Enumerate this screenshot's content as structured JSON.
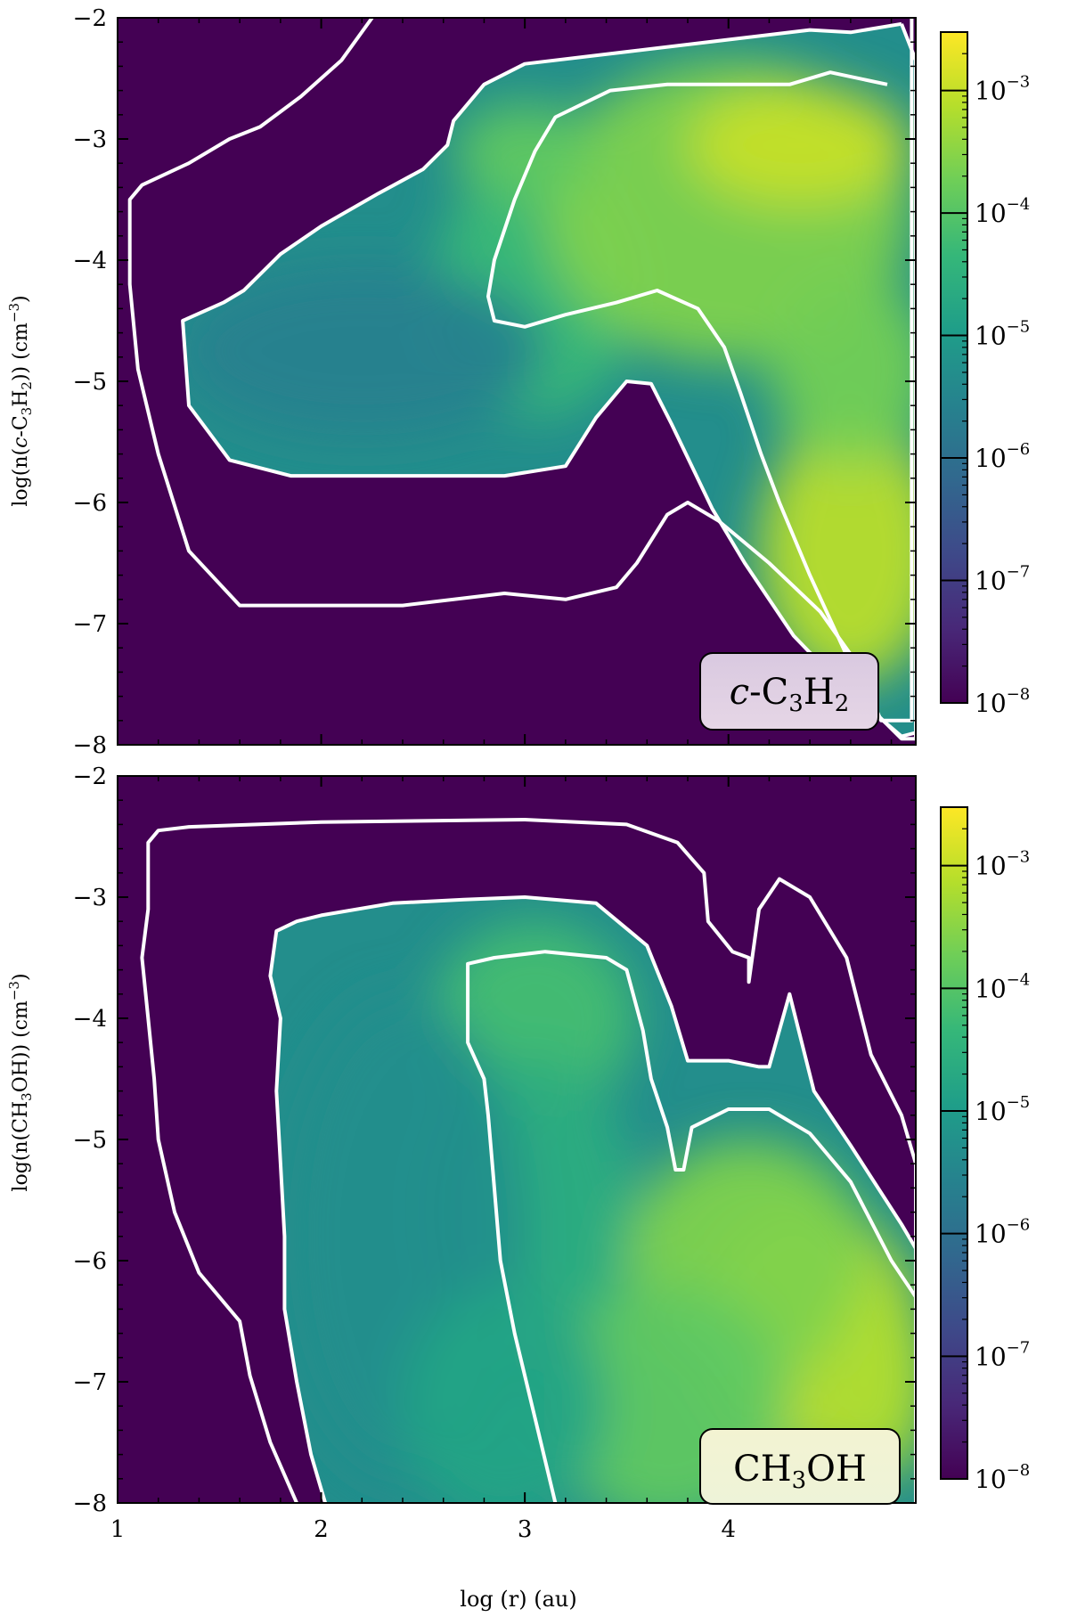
{
  "colors": {
    "background": "#440154",
    "contour": "#ffffff",
    "label_box_top": "#d9c9e0",
    "label_box_bottom": "#f3f3d2",
    "viridis": [
      "#440154",
      "#482878",
      "#3e4989",
      "#31688e",
      "#26828e",
      "#1f9e89",
      "#35b779",
      "#6ece58",
      "#b5de2b",
      "#fde725"
    ]
  },
  "chart_data": [
    {
      "type": "heatmap",
      "title": "",
      "species_label": "c-C3H2",
      "species_label_parts": {
        "prefix": "c",
        "text": "-C",
        "sub1": "3",
        "text2": "H",
        "sub2": "2"
      },
      "xlabel": "log (r) (au)",
      "ylabel_parts": {
        "a": "log(n(",
        "b": "c",
        "c": "-C",
        "sub1": "3",
        "d": "H",
        "sub2": "2",
        "e": ")) (cm",
        "sup": "−3",
        "f": ")"
      },
      "xlim": [
        1,
        4.92
      ],
      "ylim": [
        -8,
        -2
      ],
      "xticks": [
        "1",
        "2",
        "3",
        "4"
      ],
      "xtick_values": [
        1,
        2,
        3,
        4
      ],
      "yticks": [
        "−2",
        "−3",
        "−4",
        "−5",
        "−6",
        "−7",
        "−8"
      ],
      "ytick_values": [
        -2,
        -3,
        -4,
        -5,
        -6,
        -7,
        -8
      ],
      "colorbar": {
        "scale": "log",
        "range": [
          1e-08,
          0.003
        ],
        "tick_exponents": [
          "−3",
          "−4",
          "−5",
          "−6",
          "−7",
          "−8"
        ],
        "tick_values": [
          -3,
          -4,
          -5,
          -6,
          -7,
          -8
        ]
      },
      "grid": false,
      "contours": [
        {
          "level": "outer",
          "points": [
            [
              4.9,
              -2
            ],
            [
              4.9,
              -7.8
            ],
            [
              4.75,
              -7.8
            ],
            [
              4.62,
              -7.3
            ],
            [
              4.45,
              -6.9
            ],
            [
              4.2,
              -6.5
            ],
            [
              3.95,
              -6.15
            ],
            [
              3.8,
              -6
            ],
            [
              3.7,
              -6.1
            ],
            [
              3.55,
              -6.5
            ],
            [
              3.45,
              -6.7
            ],
            [
              3.2,
              -6.8
            ],
            [
              2.9,
              -6.75
            ],
            [
              2.4,
              -6.85
            ],
            [
              1.9,
              -6.85
            ],
            [
              1.6,
              -6.85
            ],
            [
              1.35,
              -6.4
            ],
            [
              1.2,
              -5.6
            ],
            [
              1.1,
              -4.9
            ],
            [
              1.06,
              -4.2
            ],
            [
              1.06,
              -3.5
            ],
            [
              1.12,
              -3.38
            ],
            [
              1.35,
              -3.2
            ],
            [
              1.55,
              -3.0
            ],
            [
              1.7,
              -2.9
            ],
            [
              1.9,
              -2.65
            ],
            [
              2.1,
              -2.35
            ],
            [
              2.25,
              -2.0
            ]
          ]
        },
        {
          "level": "middle",
          "points": [
            [
              4.85,
              -2.05
            ],
            [
              4.92,
              -2.35
            ],
            [
              4.92,
              -7.9
            ],
            [
              4.85,
              -7.93
            ],
            [
              4.55,
              -7.5
            ],
            [
              4.32,
              -7.1
            ],
            [
              4.08,
              -6.5
            ],
            [
              3.92,
              -6.05
            ],
            [
              3.72,
              -5.35
            ],
            [
              3.62,
              -5.02
            ],
            [
              3.5,
              -5
            ],
            [
              3.35,
              -5.3
            ],
            [
              3.2,
              -5.7
            ],
            [
              2.9,
              -5.78
            ],
            [
              2.5,
              -5.78
            ],
            [
              2.2,
              -5.78
            ],
            [
              1.85,
              -5.78
            ],
            [
              1.55,
              -5.65
            ],
            [
              1.35,
              -5.2
            ],
            [
              1.32,
              -4.5
            ],
            [
              1.52,
              -4.35
            ],
            [
              1.62,
              -4.25
            ],
            [
              1.8,
              -3.95
            ],
            [
              2.0,
              -3.72
            ],
            [
              2.28,
              -3.45
            ],
            [
              2.5,
              -3.25
            ],
            [
              2.62,
              -3.05
            ],
            [
              2.65,
              -2.85
            ],
            [
              2.8,
              -2.55
            ],
            [
              3.0,
              -2.38
            ],
            [
              3.5,
              -2.28
            ],
            [
              4.0,
              -2.18
            ],
            [
              4.4,
              -2.1
            ],
            [
              4.6,
              -2.12
            ],
            [
              4.85,
              -2.05
            ]
          ]
        },
        {
          "level": "inner",
          "points": [
            [
              4.78,
              -2.55
            ],
            [
              4.5,
              -2.45
            ],
            [
              4.3,
              -2.55
            ],
            [
              4.1,
              -2.55
            ],
            [
              3.9,
              -2.55
            ],
            [
              3.7,
              -2.55
            ],
            [
              3.42,
              -2.6
            ],
            [
              3.15,
              -2.82
            ],
            [
              3.05,
              -3.1
            ],
            [
              2.95,
              -3.5
            ],
            [
              2.85,
              -4.0
            ],
            [
              2.82,
              -4.3
            ],
            [
              2.85,
              -4.5
            ],
            [
              3.0,
              -4.55
            ],
            [
              3.2,
              -4.45
            ],
            [
              3.45,
              -4.35
            ],
            [
              3.65,
              -4.25
            ],
            [
              3.85,
              -4.4
            ],
            [
              3.98,
              -4.72
            ],
            [
              4.06,
              -5.1
            ],
            [
              4.16,
              -5.6
            ],
            [
              4.25,
              -6.0
            ],
            [
              4.4,
              -6.6
            ],
            [
              4.55,
              -7.15
            ],
            [
              4.7,
              -7.7
            ],
            [
              4.85,
              -7.95
            ],
            [
              4.92,
              -7.95
            ],
            [
              4.92,
              -2.6
            ]
          ]
        }
      ],
      "blobs": [
        {
          "x": 3.05,
          "y": -4.25,
          "rx": 0.5,
          "ry": 1.05,
          "value": -4.3
        },
        {
          "x": 4.0,
          "y": -3.6,
          "rx": 0.9,
          "ry": 1.25,
          "value": -3.6
        },
        {
          "x": 4.35,
          "y": -3.05,
          "rx": 0.55,
          "ry": 0.5,
          "value": -3.0
        },
        {
          "x": 4.6,
          "y": -6.4,
          "rx": 0.45,
          "ry": 1.1,
          "value": -3.1
        },
        {
          "x": 4.6,
          "y": -4.9,
          "rx": 0.4,
          "ry": 0.8,
          "value": -3.7
        },
        {
          "x": 2.2,
          "y": -4.75,
          "rx": 0.9,
          "ry": 0.7,
          "value": -5.6
        },
        {
          "x": 3.0,
          "y": -3.1,
          "rx": 0.35,
          "ry": 0.4,
          "value": -3.9
        }
      ]
    },
    {
      "type": "heatmap",
      "title": "",
      "species_label": "CH3OH",
      "species_label_parts": {
        "text": "CH",
        "sub1": "3",
        "text2": "OH"
      },
      "xlabel": "log (r) (au)",
      "ylabel_parts": {
        "a": "log(n(CH",
        "sub1": "3",
        "d": "OH)) (cm",
        "sup": "−3",
        "f": ")"
      },
      "xlim": [
        1,
        4.92
      ],
      "ylim": [
        -8,
        -2
      ],
      "xticks": [
        "1",
        "2",
        "3",
        "4"
      ],
      "xtick_values": [
        1,
        2,
        3,
        4
      ],
      "yticks": [
        "−2",
        "−3",
        "−4",
        "−5",
        "−6",
        "−7",
        "−8"
      ],
      "ytick_values": [
        -2,
        -3,
        -4,
        -5,
        -6,
        -7,
        -8
      ],
      "colorbar": {
        "scale": "log",
        "range": [
          1e-08,
          0.003
        ],
        "tick_exponents": [
          "−3",
          "−4",
          "−5",
          "−6",
          "−7",
          "−8"
        ],
        "tick_values": [
          -3,
          -4,
          -5,
          -6,
          -7,
          -8
        ]
      },
      "grid": false,
      "contours": [
        {
          "level": "outer",
          "points": [
            [
              1.88,
              -8
            ],
            [
              1.75,
              -7.5
            ],
            [
              1.65,
              -6.95
            ],
            [
              1.6,
              -6.5
            ],
            [
              1.4,
              -6.1
            ],
            [
              1.28,
              -5.6
            ],
            [
              1.2,
              -5.0
            ],
            [
              1.18,
              -4.5
            ],
            [
              1.15,
              -4.0
            ],
            [
              1.12,
              -3.5
            ],
            [
              1.15,
              -3.1
            ],
            [
              1.15,
              -2.55
            ],
            [
              1.2,
              -2.45
            ],
            [
              1.35,
              -2.42
            ],
            [
              2.0,
              -2.38
            ],
            [
              3.0,
              -2.36
            ],
            [
              3.5,
              -2.4
            ],
            [
              3.75,
              -2.55
            ],
            [
              3.88,
              -2.8
            ],
            [
              3.9,
              -3.2
            ],
            [
              4.02,
              -3.45
            ],
            [
              4.1,
              -3.5
            ],
            [
              4.1,
              -3.7
            ],
            [
              4.15,
              -3.1
            ],
            [
              4.25,
              -2.85
            ],
            [
              4.4,
              -3.0
            ],
            [
              4.58,
              -3.5
            ],
            [
              4.7,
              -4.3
            ],
            [
              4.85,
              -4.8
            ],
            [
              4.92,
              -5.2
            ],
            [
              4.92,
              -8
            ]
          ]
        },
        {
          "level": "middle",
          "points": [
            [
              2.02,
              -8
            ],
            [
              1.95,
              -7.6
            ],
            [
              1.88,
              -7.0
            ],
            [
              1.82,
              -6.4
            ],
            [
              1.82,
              -5.8
            ],
            [
              1.8,
              -5.2
            ],
            [
              1.78,
              -4.6
            ],
            [
              1.8,
              -4.0
            ],
            [
              1.75,
              -3.65
            ],
            [
              1.78,
              -3.28
            ],
            [
              1.88,
              -3.2
            ],
            [
              2.0,
              -3.15
            ],
            [
              2.35,
              -3.05
            ],
            [
              2.7,
              -3.02
            ],
            [
              3.0,
              -3.0
            ],
            [
              3.35,
              -3.05
            ],
            [
              3.6,
              -3.4
            ],
            [
              3.72,
              -3.9
            ],
            [
              3.8,
              -4.35
            ],
            [
              4.0,
              -4.35
            ],
            [
              4.15,
              -4.4
            ],
            [
              4.2,
              -4.4
            ],
            [
              4.3,
              -3.8
            ],
            [
              4.42,
              -4.6
            ],
            [
              4.6,
              -5.05
            ],
            [
              4.85,
              -5.7
            ],
            [
              4.92,
              -5.9
            ],
            [
              4.92,
              -8
            ]
          ]
        },
        {
          "level": "inner",
          "points": [
            [
              3.15,
              -8
            ],
            [
              3.05,
              -7.3
            ],
            [
              2.95,
              -6.6
            ],
            [
              2.88,
              -6.0
            ],
            [
              2.85,
              -5.4
            ],
            [
              2.82,
              -4.8
            ],
            [
              2.8,
              -4.5
            ],
            [
              2.72,
              -4.2
            ],
            [
              2.72,
              -3.55
            ],
            [
              2.85,
              -3.5
            ],
            [
              3.1,
              -3.45
            ],
            [
              3.4,
              -3.5
            ],
            [
              3.5,
              -3.6
            ],
            [
              3.58,
              -4.1
            ],
            [
              3.62,
              -4.5
            ],
            [
              3.7,
              -4.9
            ],
            [
              3.74,
              -5.25
            ],
            [
              3.78,
              -5.25
            ],
            [
              3.82,
              -4.9
            ],
            [
              4.0,
              -4.75
            ],
            [
              4.2,
              -4.75
            ],
            [
              4.4,
              -4.95
            ],
            [
              4.6,
              -5.35
            ],
            [
              4.8,
              -6.0
            ],
            [
              4.92,
              -6.3
            ],
            [
              4.92,
              -8
            ]
          ]
        }
      ],
      "blobs": [
        {
          "x": 3.05,
          "y": -4.0,
          "rx": 0.5,
          "ry": 0.8,
          "value": -4.2
        },
        {
          "x": 3.05,
          "y": -5.6,
          "rx": 0.5,
          "ry": 1.3,
          "value": -4.6
        },
        {
          "x": 4.4,
          "y": -6.6,
          "rx": 0.55,
          "ry": 1.1,
          "value": -3.1
        },
        {
          "x": 4.1,
          "y": -6.0,
          "rx": 0.6,
          "ry": 1.0,
          "value": -3.6
        },
        {
          "x": 3.7,
          "y": -7.2,
          "rx": 0.6,
          "ry": 1.0,
          "value": -3.9
        },
        {
          "x": 2.4,
          "y": -5.8,
          "rx": 0.6,
          "ry": 2.0,
          "value": -5.3
        },
        {
          "x": 2.9,
          "y": -7.2,
          "rx": 0.5,
          "ry": 1.0,
          "value": -4.8
        },
        {
          "x": 4.75,
          "y": -7.0,
          "rx": 0.25,
          "ry": 0.8,
          "value": -3.2
        }
      ]
    }
  ]
}
